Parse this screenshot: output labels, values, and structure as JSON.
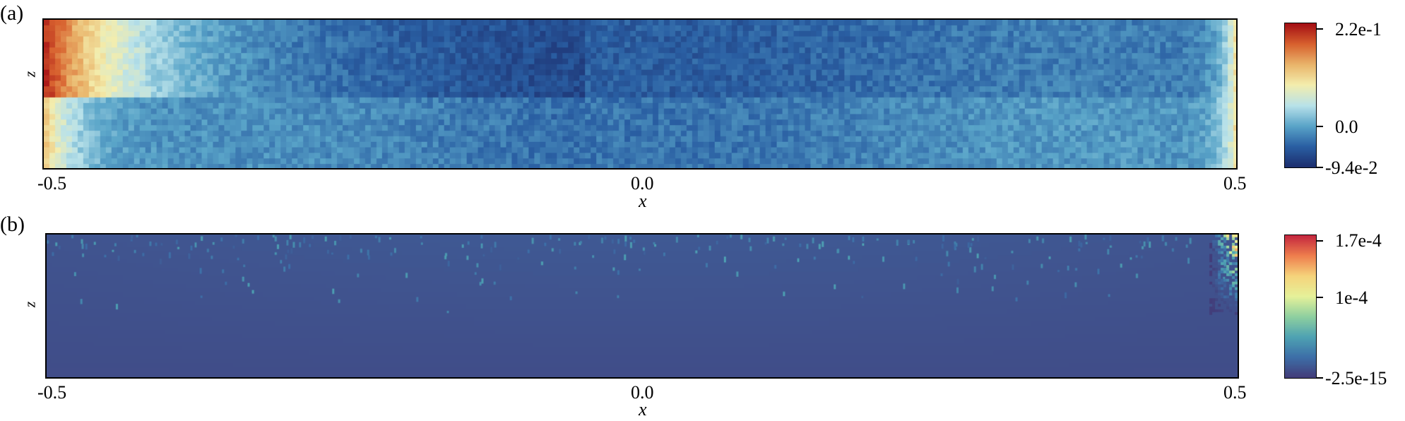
{
  "chart_data": [
    {
      "type": "heatmap",
      "panel_label": "(a)",
      "xlabel": "x",
      "ylabel": "z",
      "xlim": [
        -0.5,
        0.5
      ],
      "x_ticks": [
        "-0.5",
        "0.0",
        "0.5"
      ],
      "colorbar": {
        "min": -0.094,
        "max": 0.22,
        "tick_labels": [
          {
            "value": 0.22,
            "label": "2.2e-1"
          },
          {
            "value": 0.0,
            "label": "0.0"
          },
          {
            "value": -0.094,
            "label": "-9.4e-2"
          }
        ],
        "colormap": "RdYlBu_r",
        "colors": [
          "#1d2f6f",
          "#2a5fa3",
          "#5aa5c9",
          "#b9e2ea",
          "#f4eeae",
          "#eab56b",
          "#d8612f",
          "#a50f15"
        ]
      },
      "description_values": {
        "left_edge": 0.2,
        "right_edge": 0.12,
        "interior_upper": -0.06,
        "interior_lower": -0.03
      }
    },
    {
      "type": "heatmap",
      "panel_label": "(b)",
      "xlabel": "x",
      "ylabel": "z",
      "xlim": [
        -0.5,
        0.5
      ],
      "x_ticks": [
        "-0.5",
        "0.0",
        "0.5"
      ],
      "colorbar": {
        "min": -2.5e-15,
        "max": 0.00017,
        "tick_labels": [
          {
            "value": 0.00017,
            "label": "1.7e-4"
          },
          {
            "value": 0.0001,
            "label": "1e-4"
          },
          {
            "value": -2.5e-15,
            "label": "-2.5e-15"
          }
        ],
        "colormap": "Spectral_r",
        "colors": [
          "#433d7a",
          "#3d6fa8",
          "#4fa3b3",
          "#8fd0a0",
          "#e6f29a",
          "#f6d47c",
          "#ef7f4e",
          "#c6283f"
        ]
      },
      "description_values": {
        "background": 1e-06,
        "right_edge_max": 0.00017,
        "scattered_spikes": 4e-05
      }
    }
  ]
}
